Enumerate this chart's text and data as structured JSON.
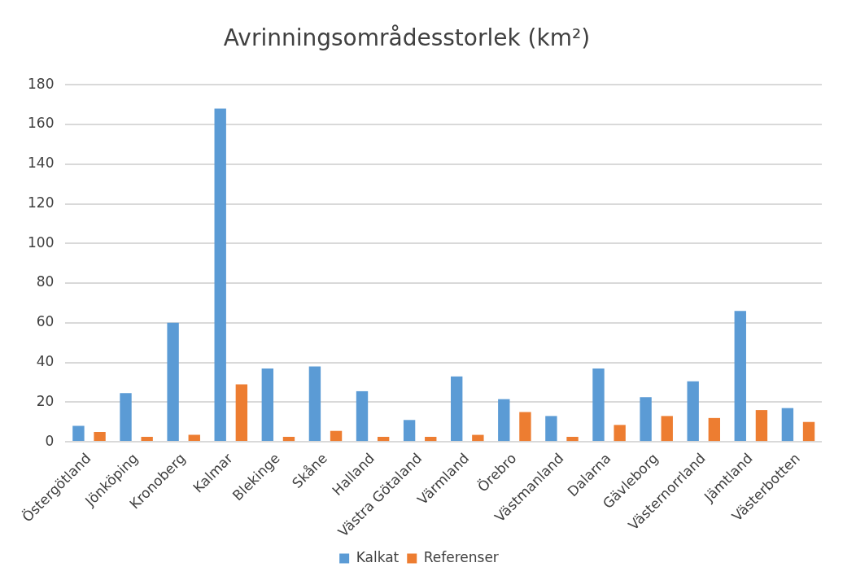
{
  "chart_data": {
    "type": "bar",
    "title": "Avrinningsområdesstorlek (km²)",
    "categories": [
      "Östergötland",
      "Jönköping",
      "Kronoberg",
      "Kalmar",
      "Blekinge",
      "Skåne",
      "Halland",
      "Västra Götaland",
      "Värmland",
      "Örebro",
      "Västmanland",
      "Dalarna",
      "Gävleborg",
      "Västernorrland",
      "Jämtland",
      "Västerbotten"
    ],
    "series": [
      {
        "name": "Kalkat",
        "color": "#5b9bd5",
        "values": [
          8,
          24.5,
          60,
          168,
          37,
          38,
          25.5,
          11,
          33,
          21.5,
          13,
          37,
          22.5,
          30.5,
          66,
          17
        ]
      },
      {
        "name": "Referenser",
        "color": "#ed7d31",
        "values": [
          5,
          2.5,
          3.5,
          29,
          2.5,
          5.5,
          2.5,
          2.5,
          3.5,
          15,
          2.5,
          8.5,
          13,
          12,
          16,
          10
        ]
      }
    ],
    "ylim": [
      0,
      180
    ],
    "yticks": [
      0,
      20,
      40,
      60,
      80,
      100,
      120,
      140,
      160,
      180
    ],
    "grid": "y",
    "legend": "bottom"
  }
}
